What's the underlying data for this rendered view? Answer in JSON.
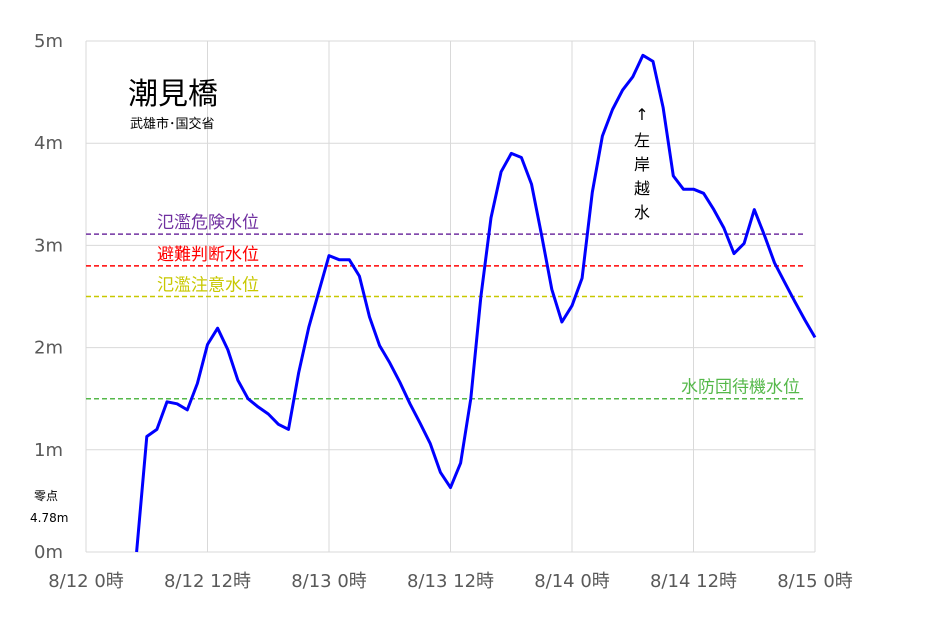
{
  "chart_data": {
    "type": "line",
    "title": "潮見橋",
    "subtitle": "武雄市･国交省",
    "xlabel": "",
    "ylabel": "",
    "ylim": [
      0,
      5
    ],
    "xlim": [
      0,
      72
    ],
    "y_ticks": [
      {
        "value": 0,
        "label": "0m"
      },
      {
        "value": 1,
        "label": "1m"
      },
      {
        "value": 2,
        "label": "2m"
      },
      {
        "value": 3,
        "label": "3m"
      },
      {
        "value": 4,
        "label": "4m"
      },
      {
        "value": 5,
        "label": "5m"
      }
    ],
    "x_ticks": [
      {
        "value": 0,
        "label": "8/12 0時"
      },
      {
        "value": 12,
        "label": "8/12 12時"
      },
      {
        "value": 24,
        "label": "8/13 0時"
      },
      {
        "value": 36,
        "label": "8/13 12時"
      },
      {
        "value": 48,
        "label": "8/14 0時"
      },
      {
        "value": 60,
        "label": "8/14 12時"
      },
      {
        "value": 72,
        "label": "8/15 0時"
      }
    ],
    "grid": true,
    "zero_note": {
      "line1": "零点",
      "line2": "4.78m"
    },
    "thresholds": [
      {
        "name": "氾濫危険水位",
        "value": 3.11,
        "color": "#7030a0"
      },
      {
        "name": "避難判断水位",
        "value": 2.8,
        "color": "#ff0000"
      },
      {
        "name": "氾濫注意水位",
        "value": 2.5,
        "color": "#c8c800"
      },
      {
        "name": "水防団待機水位",
        "value": 1.5,
        "color": "#55b84a"
      }
    ],
    "annotation": {
      "arrow": "↑",
      "chars": [
        "左",
        "岸",
        "越",
        "水"
      ]
    },
    "series": [
      {
        "color": "#0000ff",
        "x": [
          5,
          6,
          7,
          8,
          9,
          10,
          11,
          12,
          13,
          14,
          15,
          16,
          17,
          18,
          19,
          20,
          21,
          22,
          23,
          24,
          25,
          26,
          27,
          28,
          29,
          30,
          31,
          32,
          33,
          34,
          35,
          36,
          37,
          38,
          39,
          40,
          41,
          42,
          43,
          44,
          45,
          46,
          47,
          48,
          49,
          50,
          51,
          52,
          53,
          54,
          55,
          56,
          57,
          58,
          59,
          60,
          61,
          62,
          63,
          64,
          65,
          66,
          67,
          68,
          69,
          70,
          71,
          72
        ],
        "y": [
          0.0,
          1.13,
          1.2,
          1.47,
          1.45,
          1.39,
          1.65,
          2.03,
          2.19,
          1.98,
          1.68,
          1.5,
          1.42,
          1.35,
          1.25,
          1.2,
          1.75,
          2.2,
          2.55,
          2.9,
          2.86,
          2.86,
          2.7,
          2.3,
          2.02,
          1.85,
          1.66,
          1.45,
          1.26,
          1.06,
          0.78,
          0.63,
          0.87,
          1.5,
          2.5,
          3.27,
          3.72,
          3.9,
          3.86,
          3.6,
          3.1,
          2.57,
          2.25,
          2.41,
          2.68,
          3.52,
          4.07,
          4.33,
          4.52,
          4.65,
          4.86,
          4.8,
          4.35,
          3.68,
          3.55,
          3.55,
          3.51,
          3.35,
          3.17,
          2.92,
          3.02,
          3.35,
          3.1,
          2.83,
          2.64,
          2.45,
          2.27,
          2.1
        ]
      }
    ]
  }
}
